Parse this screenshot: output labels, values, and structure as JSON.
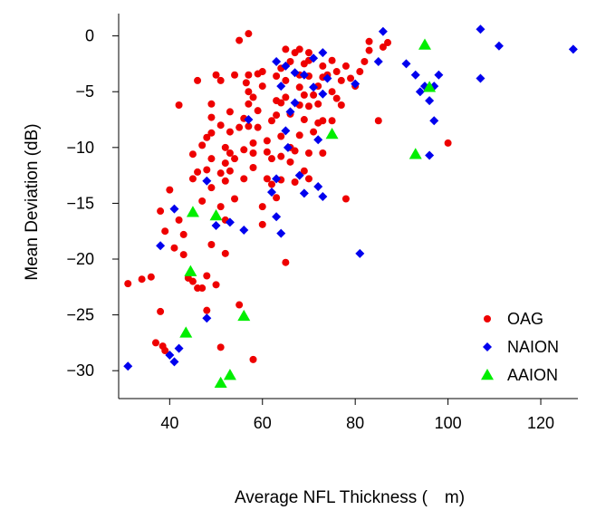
{
  "chart_data": {
    "type": "scatter",
    "title": "",
    "xlabel": "Average NFL Thickness ( m)",
    "ylabel": "Mean Deviation (dB)",
    "xlim": [
      29,
      128
    ],
    "ylim": [
      -32.5,
      2
    ],
    "xticks": [
      40,
      60,
      80,
      100,
      120
    ],
    "yticks": [
      0,
      -5,
      -10,
      -15,
      -20,
      -25,
      -30
    ],
    "xtick_labels": [
      "40",
      "60",
      "80",
      "100",
      "120"
    ],
    "ytick_labels": [
      "0",
      "−5",
      "−10",
      "−15",
      "−20",
      "−25",
      "−30"
    ],
    "grid": false,
    "legend_position": "bottom-right",
    "series": [
      {
        "name": "OAG",
        "color": "#ee0000",
        "marker": "circle",
        "points": [
          [
            31,
            -22.2
          ],
          [
            34,
            -21.8
          ],
          [
            36,
            -21.6
          ],
          [
            37,
            -27.5
          ],
          [
            38,
            -24.7
          ],
          [
            38.5,
            -27.8
          ],
          [
            39,
            -28.2
          ],
          [
            38,
            -15.7
          ],
          [
            39,
            -17.5
          ],
          [
            40,
            -13.8
          ],
          [
            41,
            -19
          ],
          [
            42,
            -6.2
          ],
          [
            42,
            -16.5
          ],
          [
            43,
            -17.8
          ],
          [
            43,
            -19.6
          ],
          [
            44,
            -21.7
          ],
          [
            45,
            -22
          ],
          [
            45,
            -10.6
          ],
          [
            45,
            -12.8
          ],
          [
            46,
            -12.2
          ],
          [
            46,
            -4
          ],
          [
            46,
            -22.6
          ],
          [
            47,
            -9.8
          ],
          [
            47,
            -14.8
          ],
          [
            47,
            -22.6
          ],
          [
            48,
            -24.6
          ],
          [
            48,
            -21.5
          ],
          [
            48,
            -12
          ],
          [
            48,
            -9.1
          ],
          [
            49,
            -6.1
          ],
          [
            49,
            -7.3
          ],
          [
            49,
            -8.7
          ],
          [
            49,
            -11
          ],
          [
            49,
            -13.6
          ],
          [
            49,
            -18.7
          ],
          [
            50,
            -22.3
          ],
          [
            50,
            -3.5
          ],
          [
            51,
            -4
          ],
          [
            51,
            -8
          ],
          [
            51,
            -12.3
          ],
          [
            51,
            -15.3
          ],
          [
            51,
            -27.9
          ],
          [
            52,
            -10
          ],
          [
            52,
            -11.4
          ],
          [
            52,
            -13
          ],
          [
            52,
            -16.5
          ],
          [
            52,
            -19.5
          ],
          [
            53,
            -6.8
          ],
          [
            53,
            -8.6
          ],
          [
            53,
            -10.5
          ],
          [
            53,
            -12.1
          ],
          [
            54,
            -3.5
          ],
          [
            54,
            -11
          ],
          [
            54,
            -14.6
          ],
          [
            55,
            -8.2
          ],
          [
            55,
            -24.1
          ],
          [
            55,
            -0.4
          ],
          [
            56,
            -7.4
          ],
          [
            56,
            -10.2
          ],
          [
            56,
            -12.8
          ],
          [
            56.5,
            -4.2
          ],
          [
            57,
            -5
          ],
          [
            57,
            -6.1
          ],
          [
            57,
            -8.1
          ],
          [
            57,
            0.2
          ],
          [
            57,
            -3.5
          ],
          [
            58,
            -5.5
          ],
          [
            58,
            -9.6
          ],
          [
            58,
            -10.5
          ],
          [
            58,
            -11.8
          ],
          [
            58,
            -29
          ],
          [
            59,
            -3.4
          ],
          [
            59,
            -6.7
          ],
          [
            59,
            -8.2
          ],
          [
            60,
            -4.5
          ],
          [
            60,
            -3.2
          ],
          [
            60,
            -15.3
          ],
          [
            60,
            -16.9
          ],
          [
            61,
            -9.4
          ],
          [
            61,
            -10.4
          ],
          [
            61,
            -12.8
          ],
          [
            62,
            -7.6
          ],
          [
            62,
            -11
          ],
          [
            62,
            -13.3
          ],
          [
            63,
            -3.6
          ],
          [
            63,
            -5.8
          ],
          [
            63,
            -7.1
          ],
          [
            63,
            -14.5
          ],
          [
            64,
            -2.9
          ],
          [
            64,
            -6
          ],
          [
            64,
            -9
          ],
          [
            64,
            -10.8
          ],
          [
            64,
            -12.9
          ],
          [
            65,
            -1.2
          ],
          [
            65,
            -4
          ],
          [
            65,
            -5.5
          ],
          [
            65,
            -20.3
          ],
          [
            66,
            -2.3
          ],
          [
            66,
            -7
          ],
          [
            66,
            -10
          ],
          [
            66,
            -11.3
          ],
          [
            67,
            -1.5
          ],
          [
            67,
            -10.3
          ],
          [
            67,
            -13.1
          ],
          [
            68,
            -1.2
          ],
          [
            68,
            -3.5
          ],
          [
            68,
            -4.6
          ],
          [
            68,
            -6.2
          ],
          [
            68,
            -8.9
          ],
          [
            69,
            -2.5
          ],
          [
            69,
            -5.3
          ],
          [
            69,
            -7.5
          ],
          [
            69,
            -12.1
          ],
          [
            70,
            -1.5
          ],
          [
            70,
            -2.2
          ],
          [
            70,
            -3.6
          ],
          [
            70,
            -6.3
          ],
          [
            70,
            -10.5
          ],
          [
            70,
            -12.8
          ],
          [
            71,
            -5.3
          ],
          [
            71,
            -8.6
          ],
          [
            72,
            -4.5
          ],
          [
            72,
            -6.1
          ],
          [
            72,
            -7.8
          ],
          [
            73,
            -2.7
          ],
          [
            73,
            -3.7
          ],
          [
            73,
            -7.6
          ],
          [
            73,
            -10.5
          ],
          [
            74,
            -3.5
          ],
          [
            75,
            -2.2
          ],
          [
            75,
            -5
          ],
          [
            75,
            -7.6
          ],
          [
            76,
            -3.2
          ],
          [
            76,
            -5.6
          ],
          [
            77,
            -4
          ],
          [
            77,
            -6.2
          ],
          [
            78,
            -2.7
          ],
          [
            78,
            -14.6
          ],
          [
            79,
            -3.8
          ],
          [
            80,
            -4.5
          ],
          [
            81,
            -3.2
          ],
          [
            82,
            -2.3
          ],
          [
            83,
            -0.5
          ],
          [
            83,
            -1.3
          ],
          [
            85,
            -7.6
          ],
          [
            86,
            -1
          ],
          [
            87,
            -0.6
          ],
          [
            100,
            -9.6
          ]
        ]
      },
      {
        "name": "NAION",
        "color": "#0000ee",
        "marker": "diamond",
        "points": [
          [
            31,
            -29.6
          ],
          [
            38,
            -18.8
          ],
          [
            40,
            -28.6
          ],
          [
            41,
            -15.5
          ],
          [
            41,
            -29.2
          ],
          [
            42,
            -28
          ],
          [
            48,
            -25.3
          ],
          [
            48,
            -13
          ],
          [
            50,
            -17
          ],
          [
            53,
            -16.7
          ],
          [
            56,
            -17.4
          ],
          [
            57,
            -7.5
          ],
          [
            62,
            -14
          ],
          [
            63,
            -2.3
          ],
          [
            63,
            -12.8
          ],
          [
            63,
            -16.2
          ],
          [
            64,
            -17.7
          ],
          [
            64,
            -4.5
          ],
          [
            65,
            -2.7
          ],
          [
            65,
            -8.5
          ],
          [
            65.5,
            -10
          ],
          [
            66,
            -6.8
          ],
          [
            67,
            -3.3
          ],
          [
            67,
            -6
          ],
          [
            68,
            -12.5
          ],
          [
            69,
            -3.5
          ],
          [
            69,
            -14.1
          ],
          [
            71,
            -2
          ],
          [
            71,
            -4.6
          ],
          [
            72,
            -9.3
          ],
          [
            72,
            -13.5
          ],
          [
            73,
            -1.5
          ],
          [
            73,
            -5.2
          ],
          [
            73,
            -14.4
          ],
          [
            74,
            -3.8
          ],
          [
            80,
            -4.3
          ],
          [
            81,
            -19.5
          ],
          [
            85,
            -2.3
          ],
          [
            86,
            0.4
          ],
          [
            91,
            -2.5
          ],
          [
            93,
            -3.5
          ],
          [
            94,
            -5
          ],
          [
            95,
            -4.5
          ],
          [
            96,
            -5.8
          ],
          [
            96,
            -10.7
          ],
          [
            97,
            -4.5
          ],
          [
            97,
            -7.6
          ],
          [
            98,
            -3.5
          ],
          [
            107,
            0.6
          ],
          [
            107,
            -3.8
          ],
          [
            111,
            -0.9
          ],
          [
            127,
            -1.2
          ]
        ]
      },
      {
        "name": "AAION",
        "color": "#00ee00",
        "marker": "triangle",
        "points": [
          [
            43.5,
            -26.6
          ],
          [
            44.5,
            -21.1
          ],
          [
            45,
            -15.8
          ],
          [
            50,
            -16.1
          ],
          [
            51,
            -31.1
          ],
          [
            53,
            -30.4
          ],
          [
            56,
            -25.1
          ],
          [
            75,
            -8.8
          ],
          [
            93,
            -10.6
          ],
          [
            95,
            -0.8
          ],
          [
            96,
            -4.6
          ]
        ]
      }
    ]
  }
}
